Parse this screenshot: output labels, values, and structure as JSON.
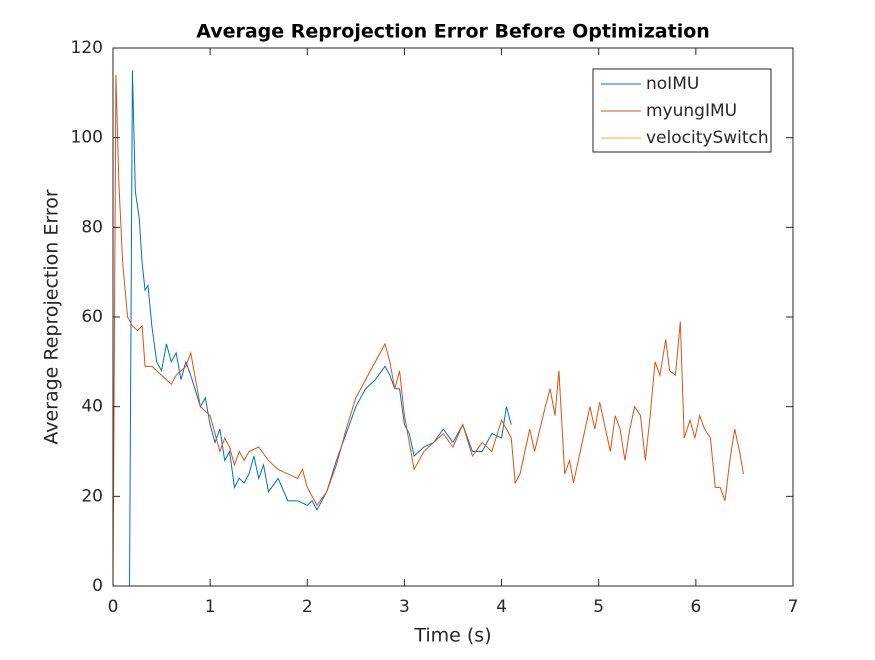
{
  "chart_data": {
    "type": "line",
    "title": "Average Reprojection Error Before Optimization",
    "xlabel": "Time (s)",
    "ylabel": "Average Reprojection Error",
    "xlim": [
      0,
      7
    ],
    "ylim": [
      0,
      120
    ],
    "xticks": [
      0,
      1,
      2,
      3,
      4,
      5,
      6,
      7
    ],
    "yticks": [
      0,
      20,
      40,
      60,
      80,
      100,
      120
    ],
    "legend": "northeast",
    "series": [
      {
        "name": "noIMU",
        "color": "#0072BD",
        "x": [
          0.17,
          0.2,
          0.23,
          0.27,
          0.3,
          0.33,
          0.36,
          0.4,
          0.45,
          0.5,
          0.55,
          0.6,
          0.65,
          0.7,
          0.75,
          0.8,
          0.9,
          0.95,
          1.0,
          1.05,
          1.1,
          1.15,
          1.2,
          1.25,
          1.3,
          1.35,
          1.4,
          1.45,
          1.5,
          1.55,
          1.6,
          1.7,
          1.8,
          1.9,
          2.0,
          2.05,
          2.1,
          2.15,
          2.2,
          2.3,
          2.4,
          2.5,
          2.6,
          2.7,
          2.8,
          2.85,
          2.9,
          2.95,
          3.0,
          3.05,
          3.1,
          3.2,
          3.3,
          3.4,
          3.5,
          3.6,
          3.7,
          3.8,
          3.9,
          4.0,
          4.05,
          4.1
        ],
        "values": [
          0,
          115,
          88,
          82,
          72,
          66,
          67,
          58,
          50,
          48,
          54,
          50,
          52,
          46,
          50,
          47,
          40,
          42,
          36,
          32,
          35,
          28,
          30,
          22,
          24,
          23,
          25,
          29,
          24,
          27,
          21,
          24,
          19,
          19,
          18,
          19,
          17,
          19,
          21,
          28,
          34,
          40,
          44,
          46,
          49,
          47,
          44,
          44,
          36,
          34,
          29,
          31,
          32,
          35,
          32,
          36,
          30,
          30,
          34,
          33,
          40,
          36
        ]
      },
      {
        "name": "myungIMU",
        "color": "#D95319",
        "x": [
          0,
          0.03,
          0.06,
          0.1,
          0.15,
          0.2,
          0.25,
          0.3,
          0.33,
          0.4,
          0.45,
          0.5,
          0.55,
          0.6,
          0.65,
          0.7,
          0.75,
          0.8,
          0.85,
          0.9,
          1.0,
          1.05,
          1.1,
          1.15,
          1.2,
          1.25,
          1.3,
          1.35,
          1.4,
          1.5,
          1.6,
          1.7,
          1.8,
          1.9,
          1.95,
          2.0,
          2.1,
          2.2,
          2.3,
          2.4,
          2.5,
          2.6,
          2.7,
          2.8,
          2.85,
          2.9,
          2.95,
          3.0,
          3.05,
          3.1,
          3.2,
          3.3,
          3.4,
          3.5,
          3.6,
          3.7,
          3.8,
          3.9,
          4.0,
          4.1,
          4.14,
          4.19,
          4.29,
          4.34,
          4.45,
          4.5,
          4.55,
          4.59,
          4.65,
          4.7,
          4.74,
          4.81,
          4.91,
          4.96,
          5.01,
          5.06,
          5.12,
          5.17,
          5.22,
          5.27,
          5.32,
          5.37,
          5.43,
          5.48,
          5.53,
          5.58,
          5.63,
          5.69,
          5.73,
          5.79,
          5.84,
          5.88,
          5.94,
          5.99,
          6.04,
          6.09,
          6.15,
          6.2,
          6.25,
          6.3,
          6.35,
          6.4,
          6.45,
          6.49
        ],
        "values": [
          0,
          114,
          90,
          72,
          60,
          58,
          57,
          58,
          49,
          49,
          48,
          47,
          46,
          45,
          47,
          48,
          49,
          52,
          46,
          40,
          38,
          34,
          30,
          33,
          31,
          27,
          30,
          28,
          30,
          31,
          28,
          26,
          25,
          24,
          26,
          22,
          18,
          21,
          27,
          35,
          42,
          46,
          50,
          54,
          50,
          44,
          48,
          38,
          32,
          26,
          30,
          32,
          34,
          31,
          36,
          29,
          32,
          30,
          37,
          33,
          23,
          25,
          35,
          30,
          40,
          44,
          38,
          48,
          25,
          28,
          23,
          30,
          40,
          35,
          41,
          36,
          30,
          38,
          35,
          28,
          35,
          40,
          38,
          28,
          38,
          50,
          47,
          55,
          48,
          47,
          59,
          33,
          37,
          33,
          38,
          35,
          33,
          22,
          22,
          19,
          28,
          35,
          30,
          25
        ]
      },
      {
        "name": "velocitySwitch",
        "color": "#EDB120",
        "x": [
          0,
          4.1
        ],
        "values": [
          0,
          0
        ]
      }
    ]
  }
}
